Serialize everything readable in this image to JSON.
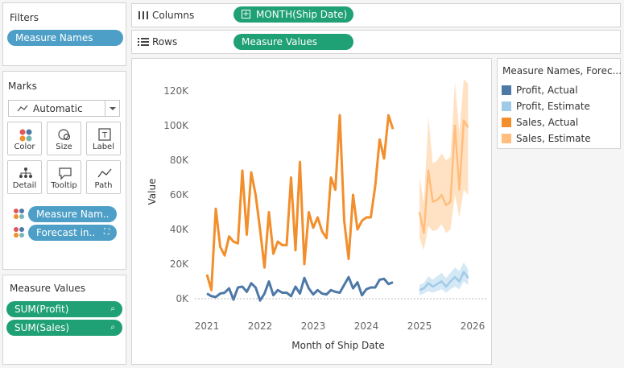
{
  "filters": {
    "title": "Filters",
    "pill": "Measure Names"
  },
  "marks": {
    "title": "Marks",
    "mark_type": "Automatic",
    "buttons": [
      "Color",
      "Size",
      "Label",
      "Detail",
      "Tooltip",
      "Path"
    ],
    "fields": [
      "Measure Nam..",
      "Forecast in.."
    ]
  },
  "measure_values": {
    "title": "Measure Values",
    "fields": [
      "SUM(Profit)",
      "SUM(Sales)"
    ]
  },
  "shelves": {
    "columns_label": "Columns",
    "columns_pill": "MONTH(Ship Date)",
    "rows_label": "Rows",
    "rows_pill": "Measure Values"
  },
  "legend": {
    "title": "Measure Names, Forec...",
    "items": [
      {
        "label": "Profit, Actual",
        "color": "#4e79a7"
      },
      {
        "label": "Profit, Estimate",
        "color": "#a0cbe8"
      },
      {
        "label": "Sales, Actual",
        "color": "#f28e2b"
      },
      {
        "label": "Sales, Estimate",
        "color": "#ffbe7d"
      }
    ]
  },
  "chart_data": {
    "type": "line",
    "xlabel": "Month of Ship Date",
    "ylabel": "Value",
    "x_ticks": [
      "2021",
      "2022",
      "2023",
      "2024",
      "2025",
      "2026"
    ],
    "y_ticks": [
      "0K",
      "20K",
      "40K",
      "60K",
      "80K",
      "100K",
      "120K"
    ],
    "ylim": [
      -5000,
      125000
    ],
    "series": [
      {
        "name": "Sales, Actual",
        "start": "2021-01",
        "values": [
          14000,
          5000,
          52000,
          30000,
          25000,
          36000,
          33000,
          32000,
          74000,
          37000,
          73000,
          60000,
          40000,
          18000,
          50000,
          26000,
          33000,
          31000,
          31000,
          70000,
          28000,
          79000,
          20000,
          50000,
          41000,
          47000,
          39000,
          35000,
          70000,
          63000,
          106000,
          45000,
          23000,
          60000,
          40000,
          45000,
          47000,
          47000,
          65000,
          92000,
          81000,
          106000,
          98000
        ]
      },
      {
        "name": "Profit, Actual",
        "start": "2021-01",
        "values": [
          3000,
          1500,
          1000,
          3000,
          3500,
          6000,
          -500,
          6500,
          7000,
          4000,
          9000,
          6500,
          -1000,
          3000,
          10000,
          2000,
          5000,
          3500,
          3500,
          1500,
          7000,
          3000,
          12000,
          6000,
          2500,
          5000,
          3000,
          2500,
          5000,
          4000,
          3500,
          8000,
          12500,
          6000,
          9500,
          2000,
          5500,
          6500,
          6500,
          11000,
          11500,
          8500,
          9500
        ]
      },
      {
        "name": "Sales, Estimate",
        "start": "2025-01",
        "values": [
          50000,
          38000,
          74000,
          56000,
          57000,
          60000,
          54000,
          56000,
          100000,
          63000,
          103000,
          99000
        ],
        "lower": [
          35000,
          28000,
          42000,
          39000,
          40000,
          43000,
          38000,
          40000,
          60000,
          47000,
          63000,
          60000
        ],
        "upper": [
          70000,
          55000,
          105000,
          78000,
          80000,
          84000,
          80000,
          82000,
          125000,
          96000,
          127000,
          124000
        ]
      },
      {
        "name": "Profit, Estimate",
        "start": "2025-01",
        "values": [
          5000,
          6000,
          9000,
          7000,
          8500,
          10000,
          7000,
          10000,
          12500,
          10000,
          15500,
          12000
        ],
        "lower": [
          2000,
          3000,
          4500,
          3500,
          4500,
          5500,
          3500,
          5500,
          7000,
          5500,
          10000,
          8000
        ],
        "upper": [
          8000,
          9000,
          13000,
          11000,
          13000,
          15000,
          12000,
          15000,
          18000,
          16000,
          21000,
          17000
        ]
      }
    ]
  }
}
